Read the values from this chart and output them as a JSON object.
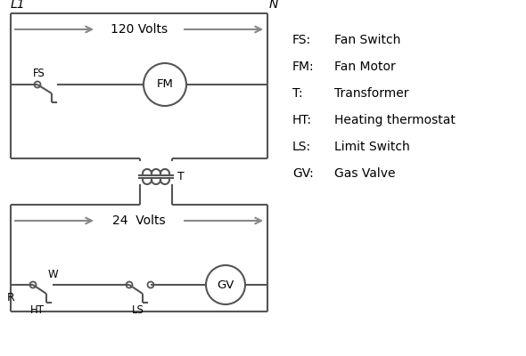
{
  "bg_color": "#ffffff",
  "line_color": "#555555",
  "arrow_color": "#888888",
  "text_color": "#000000",
  "legend": [
    [
      "FS:",
      "Fan Switch"
    ],
    [
      "FM:",
      "Fan Motor"
    ],
    [
      "T:",
      "Transformer"
    ],
    [
      "HT:",
      "Heating thermostat"
    ],
    [
      "LS:",
      "Limit Switch"
    ],
    [
      "GV:",
      "Gas Valve"
    ]
  ],
  "L1_label": "L1",
  "N_label": "N",
  "volts120_label": "120 Volts",
  "volts24_label": "24  Volts"
}
